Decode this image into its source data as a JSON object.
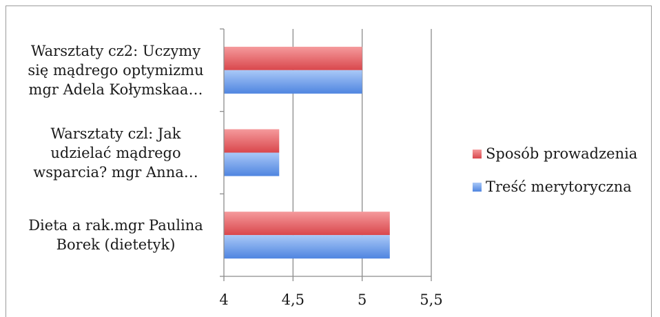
{
  "chart_data": {
    "type": "bar",
    "orientation": "horizontal",
    "categories": [
      [
        "Dieta a rak.mgr Paulina",
        "Borek (dietetyk)"
      ],
      [
        "Warsztaty czl: Jak",
        "udzielać mądrego",
        "wsparcia? mgr Anna…"
      ],
      [
        "Warsztaty cz2: Uczymy",
        "się mądrego optymizmu",
        "mgr Adela Kołymskaa…"
      ]
    ],
    "series": [
      {
        "name": "Treść merytoryczna",
        "values": [
          5.2,
          4.4,
          5.0
        ],
        "color": "#6fa0ec"
      },
      {
        "name": "Sposób prowadzenia",
        "values": [
          5.2,
          4.4,
          5.0
        ],
        "color": "#e8646a"
      }
    ],
    "xlim": [
      4,
      5.5
    ],
    "xticks": [
      "4",
      "4,5",
      "5",
      "5,5"
    ],
    "xtick_values": [
      4,
      4.5,
      5,
      5.5
    ],
    "grid": true,
    "legend_position": "right",
    "title": "",
    "xlabel": "",
    "ylabel": ""
  }
}
